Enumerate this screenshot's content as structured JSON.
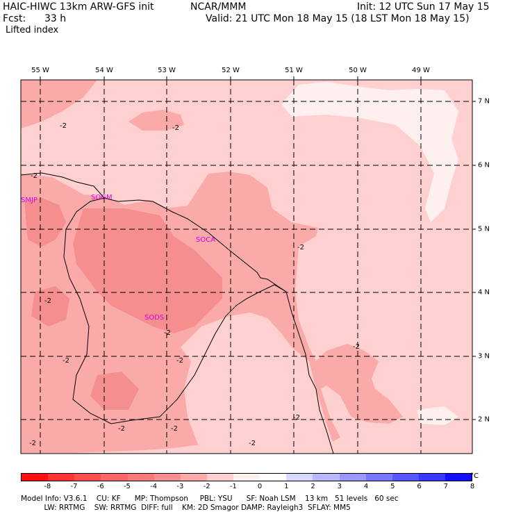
{
  "header": {
    "model_line": "HAIC-HIWC 13km ARW-GFS init",
    "org": "NCAR/MMM",
    "init": "Init: 12 UTC Sun 17 May 15",
    "fcst_label": "Fcst:",
    "fcst_value": "33 h",
    "valid": "Valid: 21 UTC Mon 18 May 15 (18 LST Mon 18 May 15)",
    "field": "Lifted index"
  },
  "map": {
    "lon_labels": [
      "55 W",
      "54 W",
      "53 W",
      "52 W",
      "51 W",
      "50 W",
      "49 W"
    ],
    "lat_labels": [
      "7 N",
      "6 N",
      "5 N",
      "4 N",
      "3 N",
      "2 N"
    ],
    "stations": [
      "SMJP",
      "SOGM",
      "SOCA",
      "SODS"
    ],
    "contour_labels": [
      "-2"
    ],
    "fill_colors": {
      "light": "#ffd0d0",
      "medium": "#fbaaaa",
      "dark": "#f58e8e",
      "pale": "#fff0f0"
    }
  },
  "colorbar": {
    "colors": [
      "#ff1010",
      "#ff3434",
      "#fd4e4e",
      "#f86666",
      "#f67a7a",
      "#f58e8e",
      "#fbaaaa",
      "#ffd0d0",
      "#fff0f0",
      "#ffffff",
      "#d8d8ff",
      "#b8b8ff",
      "#9898ff",
      "#7878ff",
      "#5858ff",
      "#3838ff",
      "#1010ff"
    ],
    "labels": [
      "-8",
      "-7",
      "-6",
      "-5",
      "-4",
      "-3",
      "-2",
      "-1",
      "0",
      "1",
      "2",
      "3",
      "4",
      "5",
      "6",
      "7",
      "8"
    ],
    "unit": "°C"
  },
  "footer": {
    "line1": "Model Info: V3.6.1    CU: KF      MP: Thompson     PBL: YSU      SF: Noah LSM    13 km   51 levels   60 sec",
    "line2": "          LW: RRTMG    SW: RRTMG  DIFF: full    KM: 2D Smagor DAMP: Rayleigh3  SFLAY: MM5"
  }
}
